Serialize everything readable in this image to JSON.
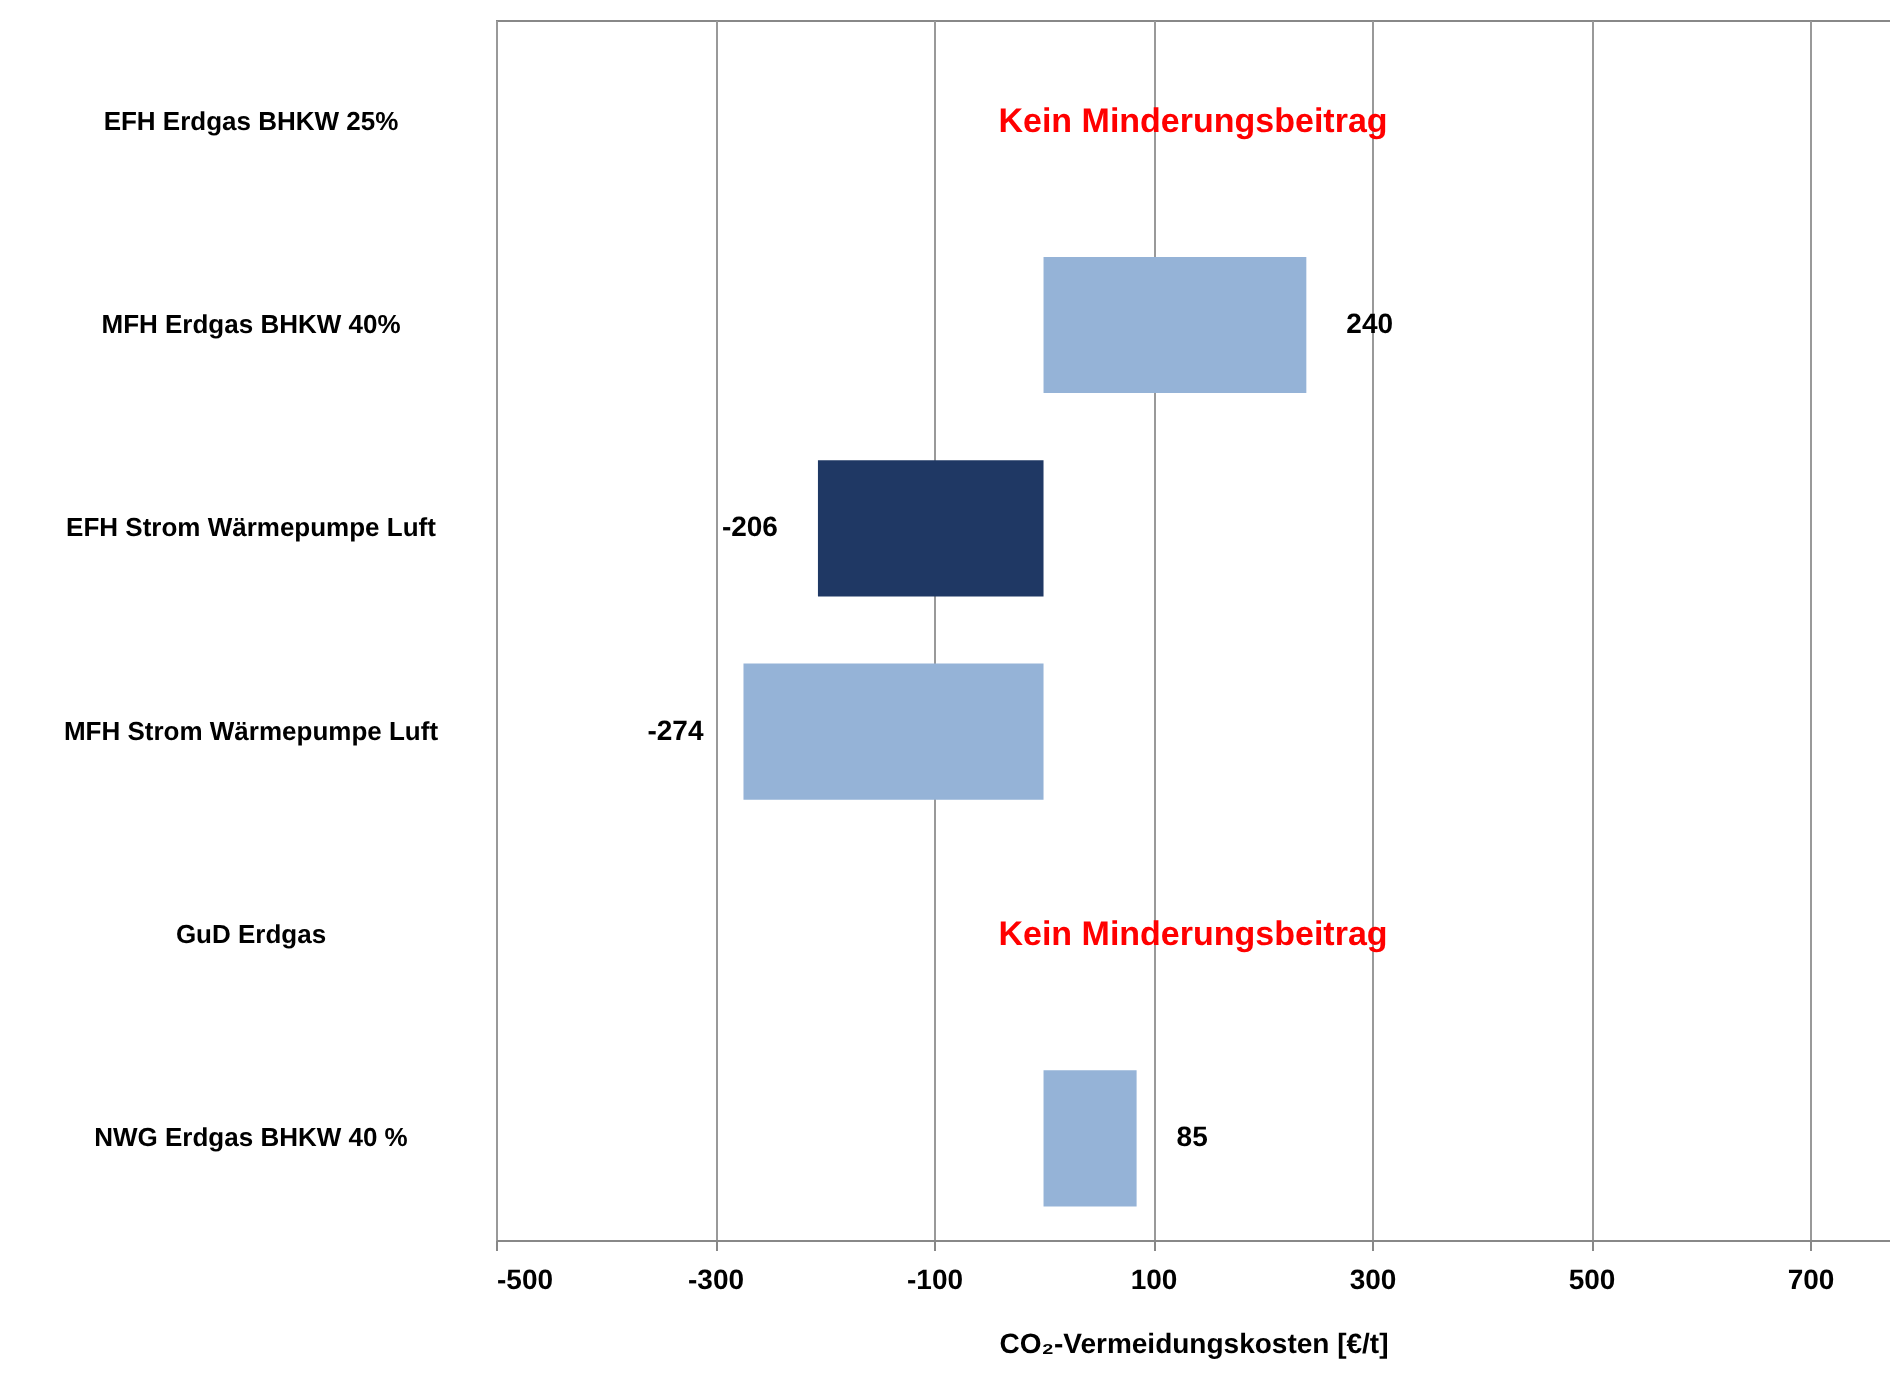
{
  "chart_data": {
    "type": "bar",
    "orientation": "horizontal",
    "xlabel": "CO₂-Vermeidungskosten [€/t]",
    "categories": [
      "EFH Erdgas BHKW 25%",
      "MFH Erdgas BHKW 40% ",
      "EFH Strom Wärmepumpe Luft",
      "MFH Strom Wärmepumpe Luft",
      "GuD Erdgas",
      "NWG Erdgas BHKW 40 % "
    ],
    "values": [
      null,
      240,
      -206,
      -274,
      null,
      85
    ],
    "colors": [
      "#95b3d7",
      "#95b3d7",
      "#1f3864",
      "#95b3d7",
      "#95b3d7",
      "#95b3d7"
    ],
    "xlim": [
      -500,
      773
    ],
    "xticks": [
      -500,
      -300,
      -100,
      100,
      300,
      500,
      700
    ],
    "grid": "x",
    "data_labels": true,
    "annotations": [
      "Kein Minderungsbeitrag",
      "Kein Minderungsbeitrag"
    ]
  }
}
